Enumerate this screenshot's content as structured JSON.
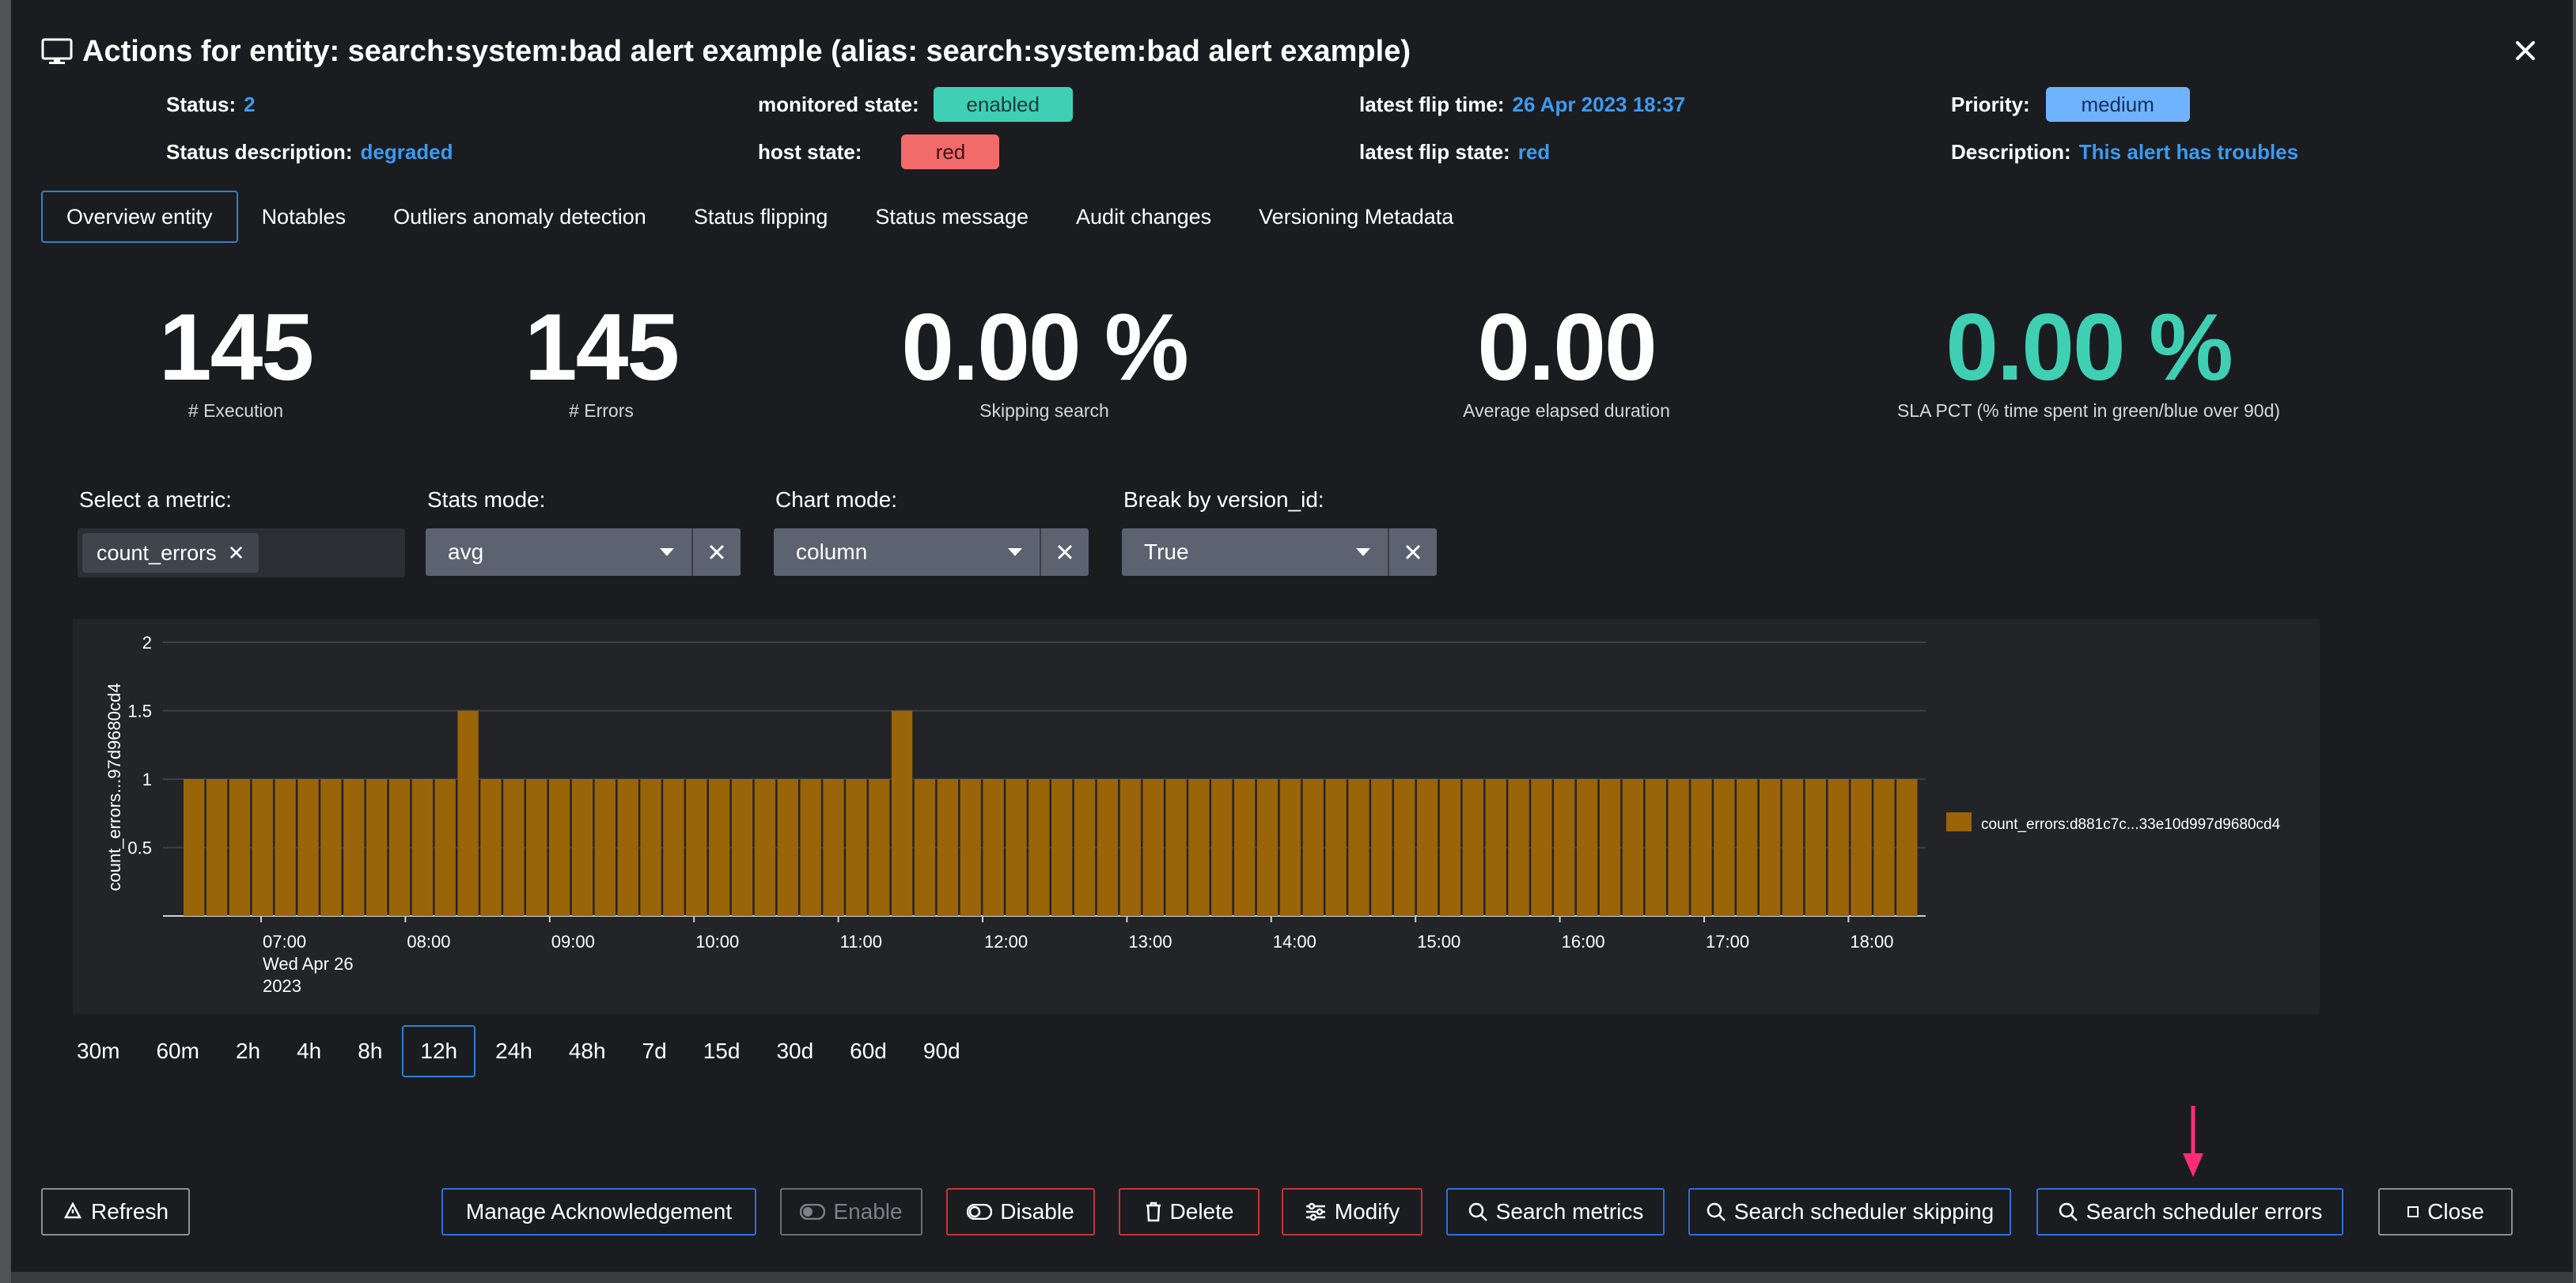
{
  "modal": {
    "title": "Actions for entity: search:system:bad alert example (alias: search:system:bad alert example)"
  },
  "meta": {
    "status_label": "Status:",
    "status_value": "2",
    "status_desc_label": "Status description:",
    "status_desc_value": "degraded",
    "monitored_label": "monitored state:",
    "monitored_value": "enabled",
    "host_label": "host state:",
    "host_value": "red",
    "flip_time_label": "latest flip time:",
    "flip_time_value": "26 Apr 2023 18:37",
    "flip_state_label": "latest flip state:",
    "flip_state_value": "red",
    "priority_label": "Priority:",
    "priority_value": "medium",
    "description_label": "Description:",
    "description_value": "This alert has troubles"
  },
  "colors": {
    "enabled_pill": "#3fd0b4",
    "red_pill": "#f26b6b",
    "medium_pill": "#6fb3ff",
    "link_blue": "#3c9bf0",
    "sla_teal": "#3fd0b4",
    "bar_fill": "#9a6408",
    "arrow": "#ff2d74"
  },
  "tabs": [
    {
      "label": "Overview entity",
      "active": true
    },
    {
      "label": "Notables"
    },
    {
      "label": "Outliers anomaly detection"
    },
    {
      "label": "Status flipping"
    },
    {
      "label": "Status message"
    },
    {
      "label": "Audit changes"
    },
    {
      "label": "Versioning Metadata"
    }
  ],
  "kpis": [
    {
      "value": "145",
      "label": "# Execution"
    },
    {
      "value": "145",
      "label": "# Errors"
    },
    {
      "value": "0.00 %",
      "label": "Skipping search"
    },
    {
      "value": "0.00",
      "label": "Average elapsed duration"
    },
    {
      "value": "0.00 %",
      "label": "SLA PCT (% time spent in green/blue over 90d)"
    }
  ],
  "filters": {
    "metric_label": "Select a metric:",
    "metric_chip": "count_errors",
    "stats_label": "Stats mode:",
    "stats_value": "avg",
    "chart_label": "Chart mode:",
    "chart_value": "column",
    "break_label": "Break by version_id:",
    "break_value": "True"
  },
  "chart_data": {
    "type": "bar",
    "ylabel": "count_errors...97d9680cd4",
    "ylim": [
      0,
      2
    ],
    "yticks": [
      "0.5",
      "1",
      "1.5",
      "2"
    ],
    "xticks": [
      "07:00",
      "08:00",
      "09:00",
      "10:00",
      "11:00",
      "12:00",
      "13:00",
      "14:00",
      "15:00",
      "16:00",
      "17:00",
      "18:00"
    ],
    "xdate_line2": "Wed Apr 26",
    "xdate_line3": "2023",
    "legend": "count_errors:d881c7c...33e10d997d9680cd4",
    "legend_position": "right",
    "series": [
      {
        "name": "count_errors:d881c7c...33e10d997d9680cd4",
        "values": [
          1,
          1,
          1,
          1,
          1,
          1,
          1,
          1,
          1,
          1,
          1,
          1,
          1.5,
          1,
          1,
          1,
          1,
          1,
          1,
          1,
          1,
          1,
          1,
          1,
          1,
          1,
          1,
          1,
          1,
          1,
          1,
          1.5,
          1,
          1,
          1,
          1,
          1,
          1,
          1,
          1,
          1,
          1,
          1,
          1,
          1,
          1,
          1,
          1,
          1,
          1,
          1,
          1,
          1,
          1,
          1,
          1,
          1,
          1,
          1,
          1,
          1,
          1,
          1,
          1,
          1,
          1,
          1,
          1,
          1,
          1,
          1,
          1,
          1,
          1,
          1,
          1
        ]
      }
    ]
  },
  "ranges": [
    {
      "label": "30m"
    },
    {
      "label": "60m"
    },
    {
      "label": "2h"
    },
    {
      "label": "4h"
    },
    {
      "label": "8h"
    },
    {
      "label": "12h",
      "active": true
    },
    {
      "label": "24h"
    },
    {
      "label": "48h"
    },
    {
      "label": "7d"
    },
    {
      "label": "15d"
    },
    {
      "label": "30d"
    },
    {
      "label": "60d"
    },
    {
      "label": "90d"
    }
  ],
  "buttons": {
    "refresh": "Refresh",
    "ack": "Manage Acknowledgement",
    "enable": "Enable",
    "disable": "Disable",
    "delete": "Delete",
    "modify": "Modify",
    "search_metrics": "Search metrics",
    "search_skipping": "Search scheduler skipping",
    "search_errors": "Search scheduler errors",
    "close": "Close"
  }
}
